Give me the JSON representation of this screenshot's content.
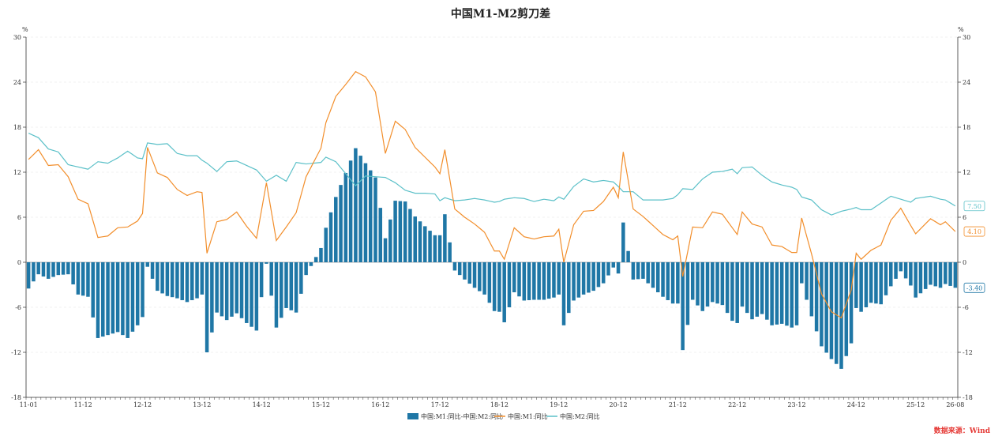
{
  "chart_data": {
    "type": "bar+line",
    "title": "中国M1-M2剪刀差",
    "source": "数据来源：Wind",
    "y_unit_left": "%",
    "y_unit_right": "%",
    "ylim": [
      -18,
      30
    ],
    "yticks": [
      -18,
      -12,
      -6,
      0,
      6,
      12,
      18,
      24,
      30
    ],
    "x_start": "2011-01",
    "x_end": "2026-08",
    "xtick_labels": [
      {
        "label": "11-01",
        "date": "2011-01"
      },
      {
        "label": "11-12",
        "date": "2011-12"
      },
      {
        "label": "12-12",
        "date": "2012-12"
      },
      {
        "label": "13-12",
        "date": "2013-12"
      },
      {
        "label": "14-12",
        "date": "2014-12"
      },
      {
        "label": "15-12",
        "date": "2015-12"
      },
      {
        "label": "16-12",
        "date": "2016-12"
      },
      {
        "label": "17-12",
        "date": "2017-12"
      },
      {
        "label": "18-12",
        "date": "2018-12"
      },
      {
        "label": "19-12",
        "date": "2019-12"
      },
      {
        "label": "20-12",
        "date": "2020-12"
      },
      {
        "label": "21-12",
        "date": "2021-12"
      },
      {
        "label": "22-12",
        "date": "2022-12"
      },
      {
        "label": "23-12",
        "date": "2023-12"
      },
      {
        "label": "24-12",
        "date": "2024-12"
      },
      {
        "label": "25-12",
        "date": "2025-12"
      },
      {
        "label": "26-08",
        "date": "2026-08"
      }
    ],
    "grid": "horizontal dashed",
    "legend_position": "bottom-center",
    "colors": {
      "spread": "#1f77a6",
      "m1": "#f28e2b",
      "m2": "#5bc0c8"
    },
    "series": [
      {
        "name": "中国:M1:同比-中国:M2:同比",
        "type": "bar",
        "key": "spread"
      },
      {
        "name": "中国:M1:同比",
        "type": "line",
        "key": "m1"
      },
      {
        "name": "中国:M2:同比",
        "type": "line",
        "key": "m2"
      }
    ],
    "end_labels": {
      "spread": "-3.40",
      "m1": "4.10",
      "m2": "7.50"
    },
    "m1_anchors": [
      [
        "2011-01",
        13.7
      ],
      [
        "2011-03",
        15.0
      ],
      [
        "2011-05",
        12.9
      ],
      [
        "2011-07",
        13.0
      ],
      [
        "2011-09",
        11.4
      ],
      [
        "2011-11",
        8.4
      ],
      [
        "2012-01",
        7.8
      ],
      [
        "2012-03",
        3.3
      ],
      [
        "2012-05",
        3.5
      ],
      [
        "2012-07",
        4.6
      ],
      [
        "2012-09",
        4.7
      ],
      [
        "2012-11",
        5.5
      ],
      [
        "2012-12",
        6.5
      ],
      [
        "2013-01",
        15.3
      ],
      [
        "2013-03",
        11.9
      ],
      [
        "2013-05",
        11.3
      ],
      [
        "2013-07",
        9.7
      ],
      [
        "2013-09",
        8.9
      ],
      [
        "2013-11",
        9.4
      ],
      [
        "2013-12",
        9.3
      ],
      [
        "2014-01",
        1.2
      ],
      [
        "2014-03",
        5.4
      ],
      [
        "2014-05",
        5.7
      ],
      [
        "2014-07",
        6.7
      ],
      [
        "2014-09",
        4.8
      ],
      [
        "2014-11",
        3.2
      ],
      [
        "2015-01",
        10.6
      ],
      [
        "2015-03",
        2.9
      ],
      [
        "2015-05",
        4.7
      ],
      [
        "2015-07",
        6.6
      ],
      [
        "2015-09",
        11.4
      ],
      [
        "2015-12",
        15.2
      ],
      [
        "2016-01",
        18.6
      ],
      [
        "2016-03",
        22.1
      ],
      [
        "2016-05",
        23.7
      ],
      [
        "2016-07",
        25.4
      ],
      [
        "2016-09",
        24.7
      ],
      [
        "2016-11",
        22.7
      ],
      [
        "2017-01",
        14.5
      ],
      [
        "2017-03",
        18.8
      ],
      [
        "2017-05",
        17.7
      ],
      [
        "2017-07",
        15.3
      ],
      [
        "2017-09",
        14.0
      ],
      [
        "2017-11",
        12.7
      ],
      [
        "2017-12",
        11.8
      ],
      [
        "2018-01",
        15.0
      ],
      [
        "2018-03",
        7.1
      ],
      [
        "2018-05",
        6.0
      ],
      [
        "2018-07",
        5.1
      ],
      [
        "2018-09",
        4.0
      ],
      [
        "2018-11",
        1.5
      ],
      [
        "2018-12",
        1.5
      ],
      [
        "2019-01",
        0.4
      ],
      [
        "2019-03",
        4.6
      ],
      [
        "2019-05",
        3.4
      ],
      [
        "2019-07",
        3.1
      ],
      [
        "2019-09",
        3.4
      ],
      [
        "2019-11",
        3.5
      ],
      [
        "2019-12",
        4.4
      ],
      [
        "2020-01",
        0.0
      ],
      [
        "2020-03",
        5.0
      ],
      [
        "2020-05",
        6.8
      ],
      [
        "2020-07",
        6.9
      ],
      [
        "2020-09",
        8.1
      ],
      [
        "2020-11",
        10.0
      ],
      [
        "2020-12",
        8.6
      ],
      [
        "2021-01",
        14.7
      ],
      [
        "2021-03",
        7.1
      ],
      [
        "2021-05",
        6.1
      ],
      [
        "2021-07",
        4.9
      ],
      [
        "2021-09",
        3.7
      ],
      [
        "2021-11",
        3.0
      ],
      [
        "2021-12",
        3.5
      ],
      [
        "2022-01",
        -1.9
      ],
      [
        "2022-03",
        4.7
      ],
      [
        "2022-05",
        4.6
      ],
      [
        "2022-07",
        6.7
      ],
      [
        "2022-09",
        6.4
      ],
      [
        "2022-11",
        4.6
      ],
      [
        "2022-12",
        3.7
      ],
      [
        "2023-01",
        6.7
      ],
      [
        "2023-03",
        5.1
      ],
      [
        "2023-05",
        4.7
      ],
      [
        "2023-07",
        2.3
      ],
      [
        "2023-09",
        2.1
      ],
      [
        "2023-11",
        1.3
      ],
      [
        "2023-12",
        1.3
      ],
      [
        "2024-01",
        5.9
      ],
      [
        "2024-03",
        1.1
      ],
      [
        "2024-05",
        -4.2
      ],
      [
        "2024-07",
        -6.6
      ],
      [
        "2024-09",
        -7.4
      ],
      [
        "2024-11",
        -3.7
      ],
      [
        "2024-12",
        1.2
      ],
      [
        "2025-01",
        0.4
      ],
      [
        "2025-03",
        1.6
      ],
      [
        "2025-05",
        2.3
      ],
      [
        "2025-07",
        5.6
      ],
      [
        "2025-09",
        7.2
      ],
      [
        "2025-11",
        4.9
      ],
      [
        "2025-12",
        3.8
      ],
      [
        "2026-03",
        5.8
      ],
      [
        "2026-05",
        5.0
      ],
      [
        "2026-06",
        5.4
      ],
      [
        "2026-08",
        4.1
      ]
    ],
    "m2_anchors": [
      [
        "2011-01",
        17.2
      ],
      [
        "2011-03",
        16.6
      ],
      [
        "2011-05",
        15.1
      ],
      [
        "2011-07",
        14.7
      ],
      [
        "2011-09",
        13.0
      ],
      [
        "2011-11",
        12.7
      ],
      [
        "2012-01",
        12.4
      ],
      [
        "2012-03",
        13.4
      ],
      [
        "2012-05",
        13.2
      ],
      [
        "2012-07",
        13.9
      ],
      [
        "2012-09",
        14.8
      ],
      [
        "2012-11",
        13.9
      ],
      [
        "2012-12",
        13.8
      ],
      [
        "2013-01",
        15.9
      ],
      [
        "2013-03",
        15.7
      ],
      [
        "2013-05",
        15.8
      ],
      [
        "2013-07",
        14.5
      ],
      [
        "2013-09",
        14.2
      ],
      [
        "2013-11",
        14.2
      ],
      [
        "2013-12",
        13.6
      ],
      [
        "2014-01",
        13.2
      ],
      [
        "2014-03",
        12.1
      ],
      [
        "2014-05",
        13.4
      ],
      [
        "2014-07",
        13.5
      ],
      [
        "2014-09",
        12.9
      ],
      [
        "2014-11",
        12.3
      ],
      [
        "2015-01",
        10.8
      ],
      [
        "2015-03",
        11.6
      ],
      [
        "2015-05",
        10.8
      ],
      [
        "2015-07",
        13.3
      ],
      [
        "2015-09",
        13.1
      ],
      [
        "2015-12",
        13.3
      ],
      [
        "2016-01",
        14.0
      ],
      [
        "2016-03",
        13.4
      ],
      [
        "2016-05",
        11.8
      ],
      [
        "2016-07",
        10.2
      ],
      [
        "2016-09",
        11.5
      ],
      [
        "2016-11",
        11.4
      ],
      [
        "2017-01",
        11.3
      ],
      [
        "2017-03",
        10.6
      ],
      [
        "2017-05",
        9.6
      ],
      [
        "2017-07",
        9.2
      ],
      [
        "2017-09",
        9.2
      ],
      [
        "2017-11",
        9.1
      ],
      [
        "2017-12",
        8.2
      ],
      [
        "2018-01",
        8.6
      ],
      [
        "2018-03",
        8.2
      ],
      [
        "2018-05",
        8.3
      ],
      [
        "2018-07",
        8.5
      ],
      [
        "2018-09",
        8.3
      ],
      [
        "2018-11",
        8.0
      ],
      [
        "2018-12",
        8.1
      ],
      [
        "2019-01",
        8.4
      ],
      [
        "2019-03",
        8.6
      ],
      [
        "2019-05",
        8.5
      ],
      [
        "2019-07",
        8.1
      ],
      [
        "2019-09",
        8.4
      ],
      [
        "2019-11",
        8.2
      ],
      [
        "2019-12",
        8.7
      ],
      [
        "2020-01",
        8.4
      ],
      [
        "2020-03",
        10.1
      ],
      [
        "2020-05",
        11.1
      ],
      [
        "2020-07",
        10.7
      ],
      [
        "2020-09",
        10.9
      ],
      [
        "2020-11",
        10.7
      ],
      [
        "2020-12",
        10.1
      ],
      [
        "2021-01",
        9.4
      ],
      [
        "2021-03",
        9.4
      ],
      [
        "2021-05",
        8.3
      ],
      [
        "2021-07",
        8.3
      ],
      [
        "2021-09",
        8.3
      ],
      [
        "2021-11",
        8.5
      ],
      [
        "2021-12",
        9.0
      ],
      [
        "2022-01",
        9.8
      ],
      [
        "2022-03",
        9.7
      ],
      [
        "2022-05",
        11.1
      ],
      [
        "2022-07",
        12.0
      ],
      [
        "2022-09",
        12.1
      ],
      [
        "2022-11",
        12.4
      ],
      [
        "2022-12",
        11.8
      ],
      [
        "2023-01",
        12.6
      ],
      [
        "2023-03",
        12.7
      ],
      [
        "2023-05",
        11.6
      ],
      [
        "2023-07",
        10.7
      ],
      [
        "2023-09",
        10.3
      ],
      [
        "2023-11",
        10.0
      ],
      [
        "2023-12",
        9.7
      ],
      [
        "2024-01",
        8.7
      ],
      [
        "2024-03",
        8.3
      ],
      [
        "2024-05",
        7.0
      ],
      [
        "2024-07",
        6.3
      ],
      [
        "2024-09",
        6.8
      ],
      [
        "2024-11",
        7.1
      ],
      [
        "2024-12",
        7.3
      ],
      [
        "2025-01",
        7.0
      ],
      [
        "2025-03",
        7.0
      ],
      [
        "2025-05",
        7.9
      ],
      [
        "2025-07",
        8.8
      ],
      [
        "2025-09",
        8.4
      ],
      [
        "2025-11",
        8.0
      ],
      [
        "2025-12",
        8.5
      ],
      [
        "2026-03",
        8.8
      ],
      [
        "2026-05",
        8.4
      ],
      [
        "2026-06",
        8.3
      ],
      [
        "2026-08",
        7.5
      ]
    ]
  }
}
